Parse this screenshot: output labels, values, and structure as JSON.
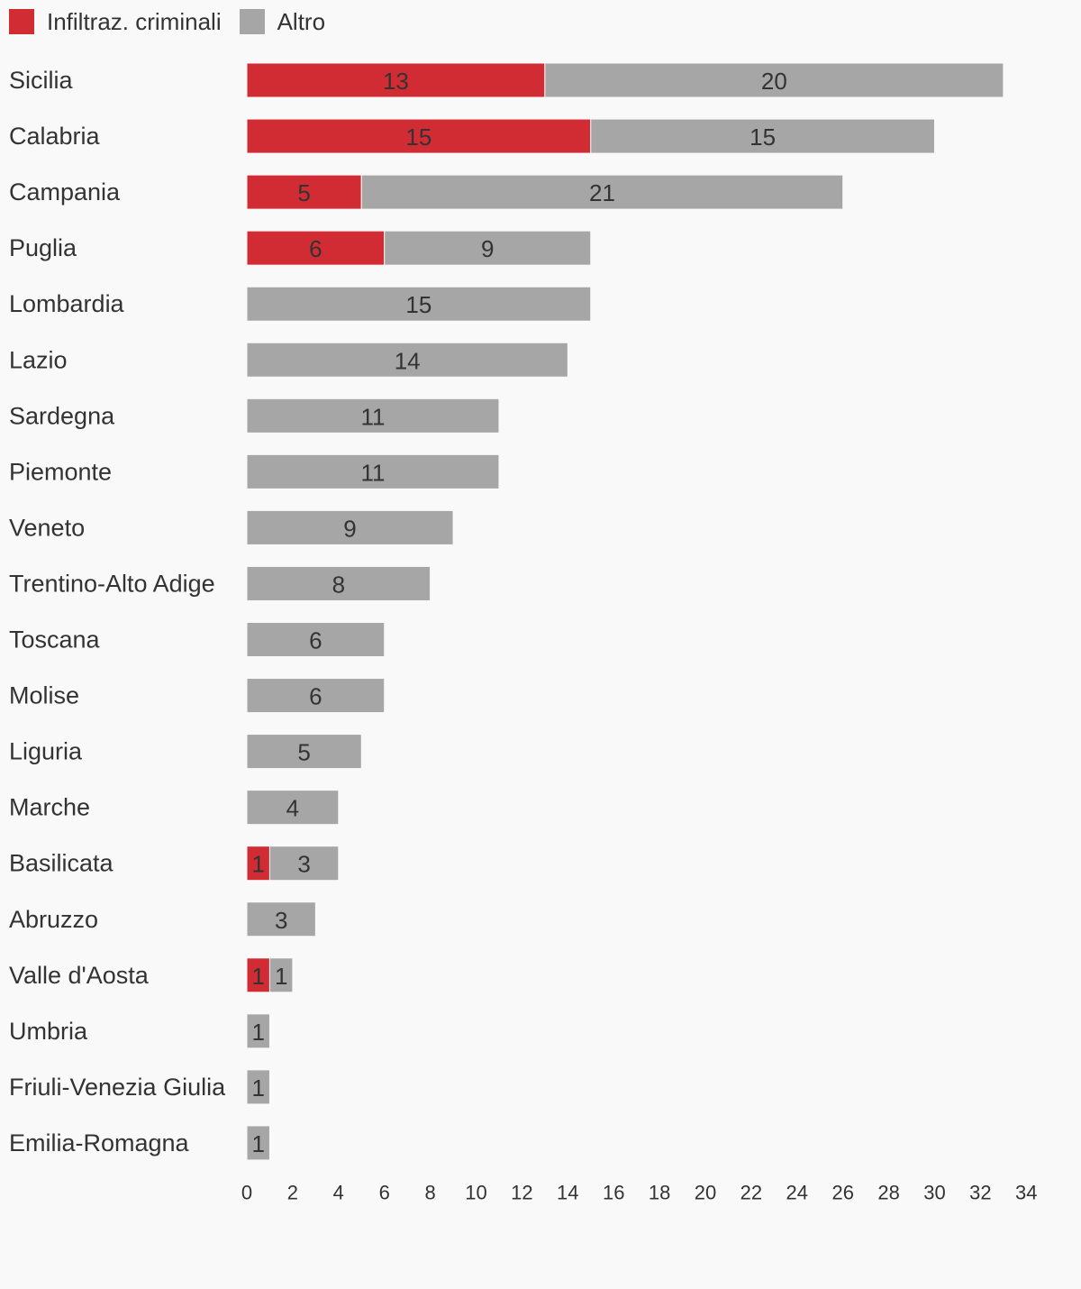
{
  "chart_data": {
    "type": "bar",
    "orientation": "horizontal",
    "stacked": true,
    "legend_position": "top-left",
    "grid": false,
    "categories": [
      "Sicilia",
      "Calabria",
      "Campania",
      "Puglia",
      "Lombardia",
      "Lazio",
      "Sardegna",
      "Piemonte",
      "Veneto",
      "Trentino-Alto Adige",
      "Toscana",
      "Molise",
      "Liguria",
      "Marche",
      "Basilicata",
      "Abruzzo",
      "Valle d'Aosta",
      "Umbria",
      "Friuli-Venezia Giulia",
      "Emilia-Romagna"
    ],
    "series": [
      {
        "name": "Infiltraz. criminali",
        "color": "#d12c33",
        "values": [
          13,
          15,
          5,
          6,
          0,
          0,
          0,
          0,
          0,
          0,
          0,
          0,
          0,
          0,
          1,
          0,
          1,
          0,
          0,
          0
        ]
      },
      {
        "name": "Altro",
        "color": "#a6a6a6",
        "values": [
          20,
          15,
          21,
          9,
          15,
          14,
          11,
          11,
          9,
          8,
          6,
          6,
          5,
          4,
          3,
          3,
          1,
          1,
          1,
          1
        ]
      }
    ],
    "xlim": [
      0,
      34
    ],
    "xticks": [
      0,
      2,
      4,
      6,
      8,
      10,
      12,
      14,
      16,
      18,
      20,
      22,
      24,
      26,
      28,
      30,
      32,
      34
    ],
    "title": "",
    "xlabel": "",
    "ylabel": ""
  }
}
